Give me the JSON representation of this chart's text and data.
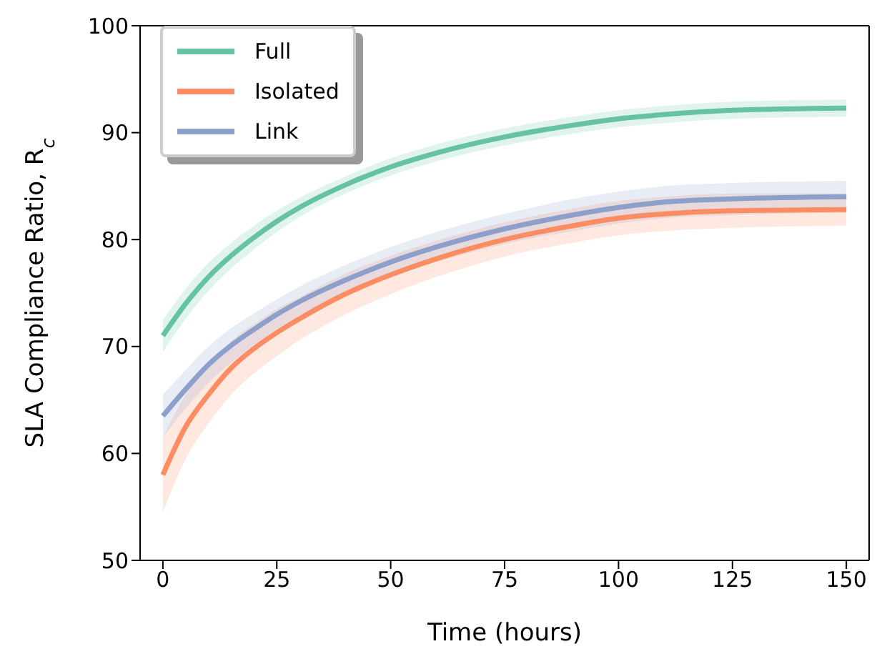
{
  "chart_data": {
    "type": "line",
    "xlabel": "Time (hours)",
    "ylabel": "SLA Compliance Ratio, R$_{c}$",
    "x": [
      0,
      5,
      10,
      15,
      20,
      25,
      30,
      40,
      50,
      60,
      75,
      90,
      100,
      110,
      125,
      150
    ],
    "series": [
      {
        "name": "Full",
        "color": "#66c2a5",
        "values": [
          71,
          74,
          76.5,
          78.5,
          80.2,
          81.7,
          83,
          85.1,
          86.8,
          88.1,
          89.6,
          90.7,
          91.3,
          91.7,
          92.1,
          92.3
        ],
        "lower": [
          69.5,
          72.6,
          75.2,
          77.3,
          79.1,
          80.7,
          82.1,
          84.3,
          86,
          87.3,
          88.8,
          89.9,
          90.5,
          90.9,
          91.3,
          91.5
        ],
        "upper": [
          72.5,
          75.4,
          77.8,
          79.7,
          81.3,
          82.7,
          83.9,
          85.9,
          87.6,
          88.9,
          90.4,
          91.5,
          92.1,
          92.5,
          92.9,
          93.1
        ]
      },
      {
        "name": "Isolated",
        "color": "#fc8d62",
        "values": [
          58,
          62.5,
          65.5,
          68,
          69.8,
          71.3,
          72.6,
          74.9,
          76.7,
          78.2,
          80,
          81.3,
          82,
          82.4,
          82.7,
          82.8
        ],
        "lower": [
          54.5,
          59.5,
          62.8,
          65.5,
          67.5,
          69.1,
          70.6,
          73,
          74.9,
          76.5,
          78.4,
          79.7,
          80.4,
          80.8,
          81.1,
          81.3
        ],
        "upper": [
          61.5,
          65.5,
          68.2,
          70.5,
          72.1,
          73.5,
          74.6,
          76.8,
          78.5,
          79.9,
          81.6,
          82.9,
          83.6,
          84,
          84.3,
          84.3
        ]
      },
      {
        "name": "Link",
        "color": "#8da0cb",
        "values": [
          63.5,
          66,
          68.3,
          70.1,
          71.6,
          73,
          74.2,
          76.2,
          77.9,
          79.3,
          81,
          82.3,
          83,
          83.5,
          83.8,
          84
        ],
        "lower": [
          61.5,
          64.2,
          66.6,
          68.5,
          70.1,
          71.6,
          72.8,
          74.8,
          76.5,
          77.9,
          79.6,
          80.8,
          81.5,
          82,
          82.3,
          82.5
        ],
        "upper": [
          65.5,
          67.8,
          70,
          71.7,
          73.1,
          74.4,
          75.6,
          77.6,
          79.3,
          80.7,
          82.4,
          83.8,
          84.5,
          85,
          85.3,
          85.5
        ]
      }
    ],
    "xlim": [
      -5,
      155
    ],
    "xticks": [
      0,
      25,
      50,
      75,
      100,
      125,
      150
    ],
    "ylim": [
      50,
      100
    ],
    "yticks": [
      50,
      60,
      70,
      80,
      90,
      100
    ],
    "grid": false,
    "legend": "top left",
    "marker": "none",
    "line_style": "solid"
  }
}
